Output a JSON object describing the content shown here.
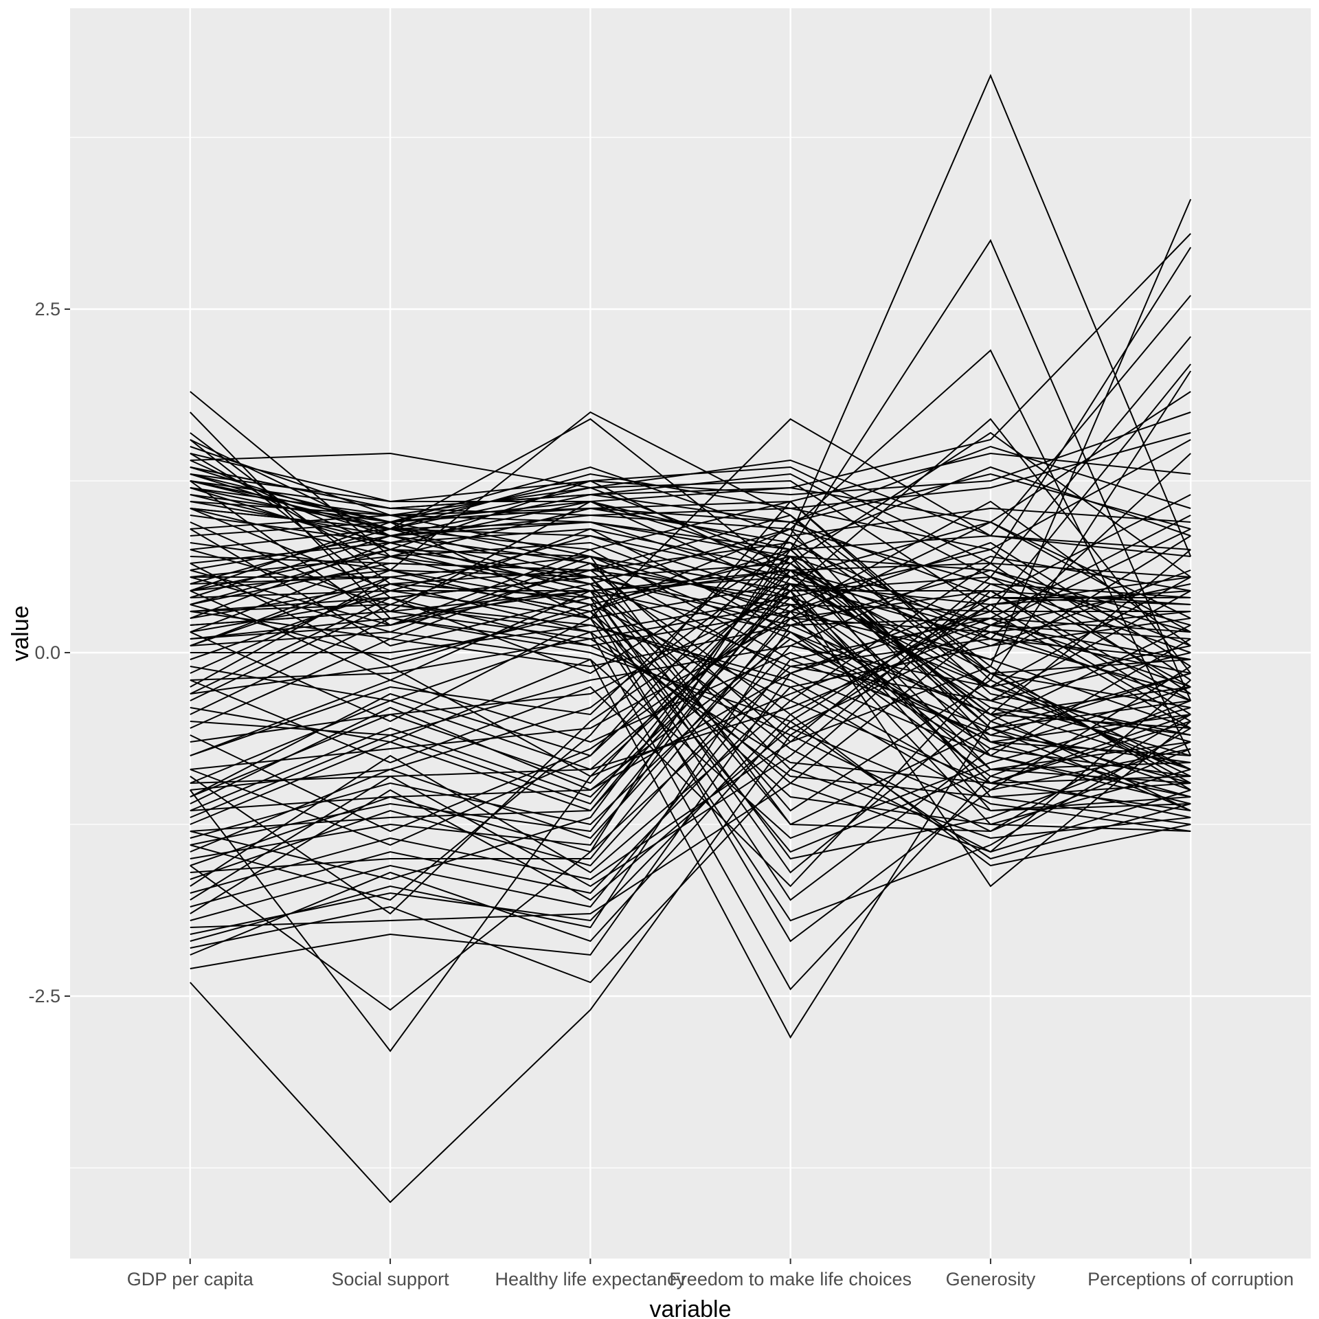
{
  "chart_data": {
    "type": "line",
    "subtype": "parallel-coordinates",
    "title": "",
    "xlabel": "variable",
    "ylabel": "value",
    "legend": "none",
    "grid": "on",
    "ylim": [
      -4.6,
      4.7
    ],
    "yticks": [
      {
        "label": "-2.5",
        "value": -2.5
      },
      {
        "label": "0.0",
        "value": 0.0
      },
      {
        "label": "2.5",
        "value": 2.5
      }
    ],
    "minor_yticks": [
      -3.75,
      -1.25,
      1.25,
      3.75
    ],
    "categories": [
      "GDP per capita",
      "Social support",
      "Healthy life expectancy",
      "Freedom to make life choices",
      "Generosity",
      "Perceptions of corruption"
    ],
    "colors": {
      "panel_background": "#EBEBEB",
      "gridline": "#FFFFFF",
      "line": "#000000",
      "tick_mark": "#333333",
      "tick_label": "#4D4D4D",
      "axis_title": "#000000",
      "figure_background": "#FFFFFF"
    },
    "series": [
      [
        1.45,
        1.1,
        1.25,
        1.35,
        0.65,
        2.95
      ],
      [
        1.4,
        1.45,
        1.2,
        1.4,
        0.85,
        2.6
      ],
      [
        1.35,
        1.05,
        1.15,
        1.3,
        0.55,
        2.3
      ],
      [
        1.5,
        1.0,
        1.2,
        1.25,
        0.3,
        2.1
      ],
      [
        1.3,
        1.1,
        1.1,
        1.2,
        0.95,
        1.9
      ],
      [
        1.25,
        0.95,
        1.25,
        1.15,
        1.25,
        1.75
      ],
      [
        1.35,
        0.9,
        1.3,
        1.05,
        0.75,
        1.55
      ],
      [
        1.2,
        1.0,
        1.05,
        1.1,
        1.45,
        1.3
      ],
      [
        1.55,
        0.85,
        1.15,
        0.95,
        0.4,
        1.15
      ],
      [
        1.3,
        0.95,
        1.35,
        0.85,
        1.05,
        0.95
      ],
      [
        1.15,
        0.8,
        1.1,
        0.75,
        0.85,
        0.7
      ],
      [
        1.25,
        0.9,
        1.2,
        0.65,
        1.6,
        0.55
      ],
      [
        1.1,
        0.85,
        1.0,
        0.9,
        0.5,
        0.4
      ],
      [
        1.2,
        0.75,
        1.25,
        0.55,
        0.95,
        0.25
      ],
      [
        1.05,
        0.9,
        0.95,
        0.7,
        0.2,
        0.1
      ],
      [
        1.9,
        0.7,
        1.05,
        0.8,
        0.1,
        1.45
      ],
      [
        1.45,
        0.6,
        1.75,
        1.0,
        -0.1,
        3.3
      ],
      [
        1.15,
        0.95,
        1.1,
        0.45,
        1.7,
        -0.15
      ],
      [
        1.0,
        0.8,
        0.9,
        0.6,
        0.65,
        -0.3
      ],
      [
        1.1,
        1.0,
        0.95,
        0.5,
        0.35,
        -0.5
      ],
      [
        1.4,
        0.75,
        0.7,
        0.3,
        1.1,
        0.05
      ],
      [
        1.3,
        0.85,
        0.95,
        0.75,
        1.35,
        0.85
      ],
      [
        1.25,
        0.95,
        1.05,
        0.95,
        1.5,
        1.05
      ],
      [
        1.35,
        1.05,
        1.0,
        1.05,
        1.2,
        1.6
      ],
      [
        1.2,
        0.9,
        0.85,
        0.4,
        0.75,
        -0.2
      ],
      [
        1.05,
        0.7,
        0.8,
        0.25,
        0.45,
        -0.45
      ],
      [
        1.25,
        1.05,
        1.15,
        1.2,
        1.55,
        3.05
      ],
      [
        1.05,
        0.9,
        1.7,
        0.55,
        -0.35,
        0.0
      ],
      [
        0.45,
        0.75,
        0.55,
        0.65,
        -0.55,
        -0.95
      ],
      [
        0.35,
        0.65,
        0.6,
        0.8,
        -0.75,
        -1.05
      ],
      [
        0.25,
        0.8,
        0.45,
        0.55,
        -0.4,
        -0.85
      ],
      [
        0.55,
        0.55,
        0.7,
        0.45,
        -0.95,
        -1.15
      ],
      [
        0.15,
        0.7,
        0.5,
        0.9,
        -0.65,
        -0.75
      ],
      [
        0.05,
        0.6,
        0.35,
        0.7,
        -1.05,
        -1.25
      ],
      [
        -0.15,
        0.5,
        0.4,
        0.6,
        -0.85,
        -0.95
      ],
      [
        0.4,
        0.85,
        0.65,
        0.35,
        -0.25,
        -0.65
      ],
      [
        -0.05,
        0.45,
        0.25,
        0.5,
        -1.15,
        -1.1
      ],
      [
        0.3,
        0.4,
        0.55,
        0.25,
        -0.7,
        -0.9
      ],
      [
        -0.25,
        0.55,
        0.3,
        0.75,
        -0.5,
        -1.0
      ],
      [
        0.2,
        0.3,
        0.45,
        0.15,
        -0.9,
        -1.2
      ],
      [
        -0.35,
        0.35,
        0.15,
        0.4,
        -0.6,
        -0.8
      ],
      [
        0.1,
        0.2,
        0.6,
        1.0,
        -0.3,
        -0.6
      ],
      [
        -0.45,
        0.25,
        0.05,
        0.3,
        -1.25,
        -1.3
      ],
      [
        0.5,
        0.9,
        0.75,
        1.1,
        -0.15,
        -0.4
      ],
      [
        -0.55,
        0.1,
        -0.1,
        0.2,
        -0.45,
        -1.15
      ],
      [
        0.0,
        0.0,
        0.2,
        -0.2,
        -1.0,
        -0.7
      ],
      [
        0.65,
        0.8,
        0.45,
        -0.55,
        -1.15,
        -1.05
      ],
      [
        0.75,
        0.9,
        0.55,
        -0.85,
        -1.35,
        -1.2
      ],
      [
        0.55,
        0.7,
        0.35,
        -0.35,
        -0.95,
        -0.9
      ],
      [
        0.85,
        0.95,
        0.65,
        -0.15,
        -0.75,
        -1.1
      ],
      [
        0.45,
        0.6,
        0.25,
        -1.05,
        -1.25,
        -0.85
      ],
      [
        0.35,
        0.75,
        0.4,
        -0.7,
        -1.45,
        -1.0
      ],
      [
        0.6,
        0.85,
        0.5,
        -1.25,
        -0.55,
        -1.15
      ],
      [
        0.25,
        0.5,
        0.15,
        -0.9,
        -1.05,
        -0.95
      ],
      [
        0.7,
        0.65,
        0.6,
        -0.45,
        -1.55,
        -1.25
      ],
      [
        0.5,
        0.55,
        0.3,
        -1.45,
        -0.85,
        -0.8
      ],
      [
        0.9,
        1.0,
        0.7,
        0.1,
        -0.65,
        -1.05
      ],
      [
        0.15,
        0.4,
        0.05,
        -0.6,
        -1.3,
        -0.7
      ],
      [
        0.4,
        0.45,
        0.45,
        -1.6,
        -0.4,
        -0.6
      ],
      [
        0.3,
        0.35,
        0.2,
        -0.25,
        -1.1,
        -1.3
      ],
      [
        0.8,
        0.6,
        0.55,
        -1.15,
        -0.2,
        -0.9
      ],
      [
        0.2,
        0.3,
        0.1,
        -0.8,
        -0.95,
        -0.5
      ],
      [
        0.1,
        0.25,
        0.0,
        -0.5,
        -1.5,
        -1.1
      ],
      [
        0.05,
        0.15,
        -0.05,
        -1.35,
        -0.8,
        -0.4
      ],
      [
        -1.05,
        -0.3,
        -0.75,
        0.85,
        4.2,
        0.7
      ],
      [
        -0.3,
        0.4,
        -0.15,
        0.75,
        3.0,
        -0.35
      ],
      [
        0.05,
        0.55,
        0.3,
        0.9,
        2.2,
        -0.75
      ],
      [
        1.05,
        0.45,
        0.85,
        0.55,
        0.15,
        0.3
      ],
      [
        0.95,
        0.3,
        1.1,
        0.65,
        -0.25,
        0.55
      ],
      [
        -0.65,
        -0.45,
        -0.3,
        0.45,
        0.55,
        -0.25
      ],
      [
        -0.85,
        -0.7,
        -0.55,
        0.25,
        0.95,
        0.15
      ],
      [
        0.6,
        0.2,
        0.75,
        -0.05,
        -0.6,
        -0.15
      ],
      [
        -0.2,
        -0.15,
        0.1,
        0.35,
        0.3,
        -0.55
      ],
      [
        -0.95,
        -0.9,
        -0.85,
        -0.4,
        0.2,
        -0.05
      ],
      [
        0.75,
        0.35,
        0.9,
        0.15,
        -0.45,
        0.75
      ],
      [
        -0.5,
        -0.6,
        -0.2,
        0.05,
        0.7,
        0.45
      ],
      [
        -1.15,
        -1.05,
        -1.0,
        -0.15,
        0.4,
        0.35
      ],
      [
        0.3,
        0.1,
        0.65,
        -0.65,
        -0.1,
        -1.0
      ],
      [
        -0.75,
        -0.25,
        -0.45,
        0.95,
        1.3,
        0.9
      ],
      [
        -1.3,
        -1.2,
        -1.15,
        0.6,
        0.05,
        0.6
      ],
      [
        0.45,
        0.95,
        0.25,
        1.7,
        0.85,
        0.75
      ],
      [
        1.6,
        0.5,
        0.6,
        0.4,
        -0.05,
        0.85
      ],
      [
        1.55,
        0.4,
        0.55,
        0.2,
        0.25,
        1.0
      ],
      [
        1.25,
        0.2,
        0.5,
        -0.1,
        -0.35,
        0.45
      ],
      [
        0.9,
        0.05,
        0.4,
        -1.8,
        -0.7,
        -0.25
      ],
      [
        0.65,
        -0.1,
        0.35,
        -2.1,
        -1.0,
        -0.1
      ],
      [
        0.15,
        -0.5,
        0.25,
        -1.95,
        -1.4,
        -0.55
      ],
      [
        -0.1,
        -0.35,
        0.15,
        -2.45,
        -0.9,
        -0.35
      ],
      [
        0.45,
        -0.2,
        0.45,
        -1.5,
        -1.2,
        -0.65
      ],
      [
        -0.4,
        -0.65,
        -0.05,
        -2.8,
        -0.5,
        0.2
      ],
      [
        0.55,
        0.15,
        0.7,
        -1.25,
        -1.3,
        -0.45
      ],
      [
        -0.2,
        -0.8,
        -0.25,
        -1.7,
        -0.15,
        -0.85
      ],
      [
        0.35,
        -0.05,
        0.3,
        -0.95,
        -1.45,
        -0.2
      ],
      [
        1.75,
        0.25,
        0.45,
        0.6,
        0.2,
        0.9
      ],
      [
        -1.45,
        -0.85,
        -1.35,
        0.25,
        0.15,
        -0.15
      ],
      [
        -1.65,
        -1.15,
        -1.55,
        0.05,
        -0.25,
        0.05
      ],
      [
        -1.25,
        -0.65,
        -1.15,
        0.45,
        0.45,
        -0.35
      ],
      [
        -1.85,
        -1.45,
        -1.75,
        -0.25,
        0.05,
        0.25
      ],
      [
        -1.05,
        -0.45,
        -0.95,
        0.65,
        -0.45,
        -0.55
      ],
      [
        -2.05,
        -1.75,
        -1.95,
        -0.45,
        0.35,
        0.45
      ],
      [
        -1.55,
        -1.05,
        -1.45,
        0.85,
        -0.15,
        -0.05
      ],
      [
        -1.75,
        -1.35,
        -1.65,
        -0.65,
        0.55,
        0.15
      ],
      [
        -1.35,
        -0.95,
        -1.25,
        0.15,
        -0.65,
        -0.45
      ],
      [
        -1.95,
        -1.55,
        -1.85,
        -0.05,
        0.25,
        -0.25
      ],
      [
        -1.15,
        -0.55,
        -1.05,
        0.35,
        -0.85,
        -0.65
      ],
      [
        -2.15,
        -1.85,
        -2.4,
        -0.85,
        0.45,
        0.35
      ],
      [
        -1.5,
        -1.25,
        -1.4,
        0.55,
        -0.35,
        -0.75
      ],
      [
        -1.7,
        -0.75,
        -1.6,
        -0.35,
        0.65,
        0.55
      ],
      [
        -1.3,
        -1.65,
        -1.2,
        0.75,
        -0.55,
        -0.15
      ],
      [
        -1.9,
        -1.0,
        -1.8,
        -0.55,
        0.15,
        -0.35
      ],
      [
        -1.1,
        -0.4,
        -1.0,
        0.1,
        -0.75,
        0.1
      ],
      [
        -2.3,
        -2.05,
        -2.2,
        -0.15,
        0.3,
        0.3
      ],
      [
        -1.6,
        -1.5,
        -1.5,
        0.3,
        -0.05,
        -0.55
      ],
      [
        -1.8,
        -0.9,
        -1.7,
        -0.75,
        0.5,
        0.0
      ],
      [
        -1.4,
        -1.1,
        -1.3,
        0.5,
        -0.25,
        -0.85
      ],
      [
        -2.0,
        -1.95,
        -1.9,
        -0.95,
        0.2,
        0.5
      ],
      [
        -1.2,
        -0.6,
        -1.1,
        0.7,
        -0.45,
        -0.25
      ],
      [
        -2.1,
        -1.7,
        -2.0,
        0.2,
        0.6,
        0.2
      ],
      [
        -0.95,
        -0.35,
        -0.85,
        0.4,
        -0.95,
        -0.45
      ],
      [
        -1.55,
        -2.6,
        -1.45,
        -0.1,
        0.1,
        -0.05
      ],
      [
        -0.85,
        -1.4,
        -0.75,
        0.6,
        -0.15,
        -0.95
      ],
      [
        -2.2,
        -1.6,
        -2.1,
        -0.5,
        0.4,
        0.4
      ],
      [
        -0.75,
        -0.2,
        -0.65,
        0.0,
        -0.55,
        -0.35
      ],
      [
        -1.0,
        -2.9,
        -0.9,
        -0.3,
        0.25,
        0.15
      ],
      [
        -2.4,
        -4.0,
        -2.6,
        -0.6,
        0.35,
        0.55
      ],
      [
        -1.4,
        -1.8,
        -0.6,
        1.1,
        -0.2,
        2.05
      ],
      [
        -0.3,
        -0.1,
        -0.9,
        0.45,
        -1.7,
        -0.5
      ],
      [
        -0.9,
        -1.9,
        -0.5,
        0.5,
        0.1,
        -0.3
      ],
      [
        -1.0,
        -0.85,
        -0.4,
        0.7,
        0.6,
        0.05
      ],
      [
        -0.6,
        -1.3,
        -0.7,
        0.3,
        0.8,
        -0.1
      ]
    ]
  }
}
